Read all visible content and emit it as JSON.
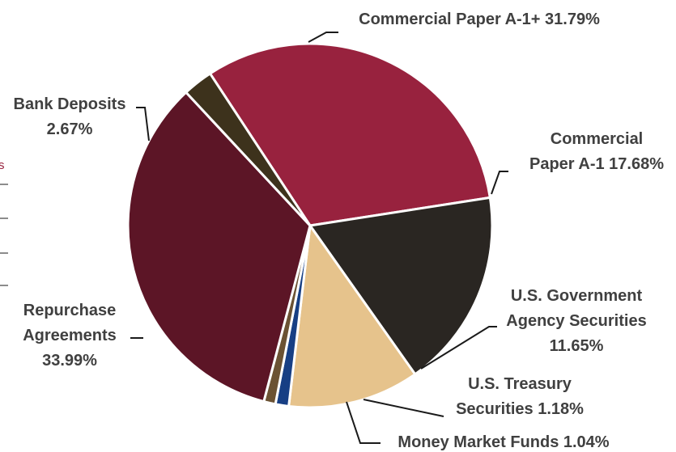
{
  "chart_data": {
    "type": "pie",
    "title": "",
    "slices": [
      {
        "label_lines": [
          "Commercial Paper A-1+ 31.79%"
        ],
        "name": "Commercial Paper A-1+",
        "value": 31.79,
        "color": "#98223e"
      },
      {
        "label_lines": [
          "Commercial",
          "Paper A-1 17.68%"
        ],
        "name": "Commercial Paper A-1",
        "value": 17.68,
        "color": "#2a2622"
      },
      {
        "label_lines": [
          "U.S. Government",
          "Agency Securities",
          "11.65%"
        ],
        "name": "U.S. Government Agency Securities",
        "value": 11.65,
        "color": "#e6c38c"
      },
      {
        "label_lines": [
          "U.S. Treasury",
          "Securities 1.18%"
        ],
        "name": "U.S. Treasury Securities",
        "value": 1.18,
        "color": "#173f84"
      },
      {
        "label_lines": [
          "Money Market Funds 1.04%"
        ],
        "name": "Money Market Funds",
        "value": 1.04,
        "color": "#6b5233"
      },
      {
        "label_lines": [
          "Repurchase",
          "Agreements",
          "33.99%"
        ],
        "name": "Repurchase Agreements",
        "value": 33.99,
        "color": "#5c1526"
      },
      {
        "label_lines": [
          "Bank Deposits",
          "2.67%"
        ],
        "name": "Bank Deposits",
        "value": 2.67,
        "color": "#3d321c"
      }
    ],
    "legend": "none"
  },
  "fragments": {
    "left_edge_text": "s"
  }
}
